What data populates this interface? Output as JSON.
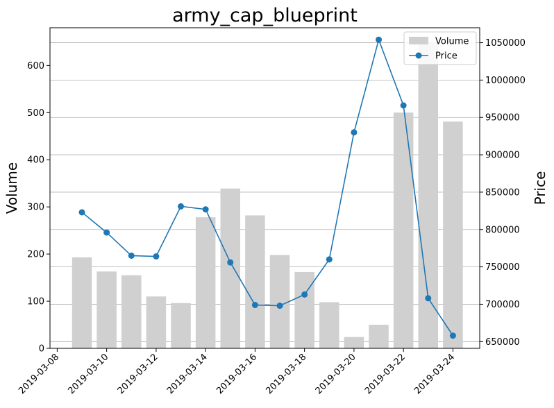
{
  "chart_data": {
    "type": "bar",
    "title": "army_cap_blueprint",
    "xlabel": "",
    "ylabel": "Volume",
    "y2label": "Price",
    "x": [
      "2019-03-09",
      "2019-03-10",
      "2019-03-11",
      "2019-03-12",
      "2019-03-13",
      "2019-03-14",
      "2019-03-15",
      "2019-03-16",
      "2019-03-17",
      "2019-03-18",
      "2019-03-19",
      "2019-03-20",
      "2019-03-21",
      "2019-03-22",
      "2019-03-23",
      "2019-03-24"
    ],
    "xticks": [
      "2019-03-08",
      "2019-03-10",
      "2019-03-12",
      "2019-03-14",
      "2019-03-16",
      "2019-03-18",
      "2019-03-20",
      "2019-03-22",
      "2019-03-24"
    ],
    "xlim": [
      "2019-03-07T17:00",
      "2019-03-25T02:00"
    ],
    "ylim": [
      0,
      680
    ],
    "yticks": [
      0,
      100,
      200,
      300,
      400,
      500,
      600
    ],
    "y2lim": [
      641000,
      1070000
    ],
    "y2ticks": [
      650000,
      700000,
      750000,
      800000,
      850000,
      900000,
      950000,
      1000000,
      1050000
    ],
    "series": [
      {
        "name": "Volume",
        "kind": "bar",
        "axis": "left",
        "color": "#d0d0d0",
        "values": [
          193,
          163,
          155,
          110,
          96,
          278,
          339,
          282,
          198,
          162,
          98,
          24,
          50,
          500,
          648,
          481
        ]
      },
      {
        "name": "Price",
        "kind": "line",
        "axis": "right",
        "color": "#1f77b4",
        "values": [
          823000,
          796000,
          765000,
          764000,
          831000,
          827000,
          756000,
          699000,
          698000,
          713000,
          760000,
          930000,
          1054000,
          966000,
          708000,
          658000
        ]
      }
    ],
    "grid": "horizontal-right-axis",
    "legend_position": "top-right"
  }
}
